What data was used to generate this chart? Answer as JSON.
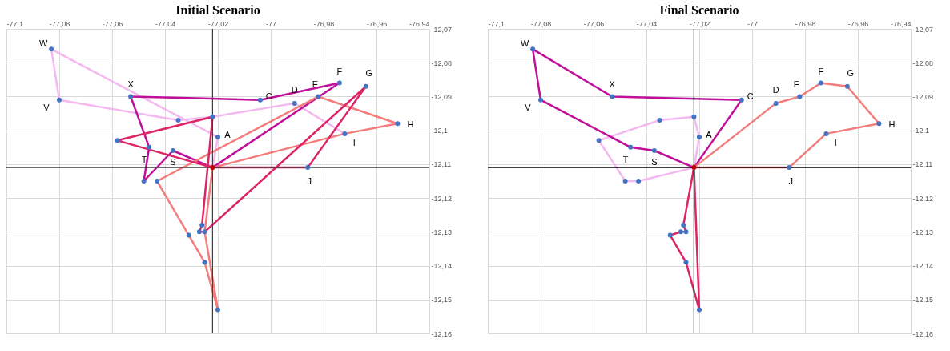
{
  "chart_data": [
    {
      "type": "line",
      "title": "Initial Scenario",
      "xlim": [
        -77.1,
        -76.94
      ],
      "ylim": [
        -12.16,
        -12.07
      ],
      "xticks": [
        {
          "value": -77.1,
          "label": "-77,1"
        },
        {
          "value": -77.08,
          "label": "-77,08"
        },
        {
          "value": -77.06,
          "label": "-77,06"
        },
        {
          "value": -77.04,
          "label": "-77,04"
        },
        {
          "value": -77.02,
          "label": "-77,02"
        },
        {
          "value": -77,
          "label": "-77"
        },
        {
          "value": -76.98,
          "label": "-76,98"
        },
        {
          "value": -76.96,
          "label": "-76,96"
        },
        {
          "value": -76.94,
          "label": "-76,94"
        }
      ],
      "yticks": [
        {
          "value": -12.16,
          "label": "-12,16"
        },
        {
          "value": -12.15,
          "label": "-12,15"
        },
        {
          "value": -12.14,
          "label": "-12,14"
        },
        {
          "value": -12.13,
          "label": "-12,13"
        },
        {
          "value": -12.12,
          "label": "-12,12"
        },
        {
          "value": -12.11,
          "label": "-12,11"
        },
        {
          "value": -12.1,
          "label": "-12,1"
        },
        {
          "value": -12.09,
          "label": "-12,09"
        },
        {
          "value": -12.08,
          "label": "-12,08"
        },
        {
          "value": -12.07,
          "label": "-12,07"
        }
      ],
      "grid": true,
      "marker": "none",
      "line_style": "solid",
      "ref_lines": [
        {
          "axis": "x",
          "value": -77.022,
          "color": "#404040"
        },
        {
          "axis": "y",
          "value": -12.111,
          "color": "#404040"
        }
      ],
      "series": [
        {
          "color": "#f4b8f0",
          "x": [
            -77.022,
            -77.02,
            -77.083,
            -77.08,
            -77.035,
            -77.022,
            -76.991,
            -76.972
          ],
          "values": [
            -12.111,
            -12.102,
            -12.076,
            -12.091,
            -12.097,
            -12.096,
            -12.092,
            -12.101
          ]
        },
        {
          "color": "#c0109a",
          "x": [
            -77.022,
            -77.037,
            -77.048,
            -77.046,
            -77.053
          ],
          "values": [
            -12.111,
            -12.106,
            -12.115,
            -12.105,
            -12.09
          ]
        },
        {
          "color": "#c0109a",
          "x": [
            -77.053,
            -77.004,
            -76.974,
            -77.022
          ],
          "values": [
            -12.09,
            -12.091,
            -12.086,
            -12.111
          ]
        },
        {
          "color": "#f47c7c",
          "x": [
            -77.022,
            -76.972,
            -76.952,
            -76.982,
            -77.043,
            -77.031,
            -77.025,
            -77.02
          ],
          "values": [
            -12.111,
            -12.101,
            -12.098,
            -12.09,
            -12.115,
            -12.131,
            -12.139,
            -12.153
          ]
        },
        {
          "color": "#f47c7c",
          "x": [
            -77.02,
            -77.025,
            -77.022
          ],
          "values": [
            -12.153,
            -12.13,
            -12.111
          ]
        },
        {
          "color": "#dc2466",
          "x": [
            -77.022,
            -77.058,
            -77.022,
            -77.026,
            -77.027
          ],
          "values": [
            -12.111,
            -12.103,
            -12.096,
            -12.128,
            -12.13
          ]
        },
        {
          "color": "#dc2466",
          "x": [
            -77.027,
            -77.025,
            -76.964,
            -76.986,
            -77.022
          ],
          "values": [
            -12.13,
            -12.13,
            -12.087,
            -12.111,
            -12.111
          ]
        },
        {
          "type": "scatter",
          "marker": "circle",
          "color": "#4472c4",
          "x": [
            -77.083,
            -77.08,
            -77.053,
            -77.035,
            -77.022,
            -77.02,
            -77.058,
            -77.046,
            -77.037,
            -77.048,
            -77.043,
            -77.004,
            -76.991,
            -76.982,
            -76.974,
            -76.964,
            -76.952,
            -76.972,
            -76.986,
            -77.026,
            -77.027,
            -77.025,
            -77.031,
            -77.025,
            -77.02
          ],
          "values": [
            -12.076,
            -12.091,
            -12.09,
            -12.097,
            -12.096,
            -12.102,
            -12.103,
            -12.105,
            -12.106,
            -12.115,
            -12.115,
            -12.091,
            -12.092,
            -12.09,
            -12.086,
            -12.087,
            -12.098,
            -12.101,
            -12.111,
            -12.128,
            -12.13,
            -12.13,
            -12.131,
            -12.139,
            -12.153
          ]
        },
        {
          "type": "scatter",
          "marker": "circle",
          "color": "#c00000",
          "x": [
            -77.022
          ],
          "values": [
            -12.111
          ]
        }
      ],
      "annotations": [
        {
          "text": "W",
          "x": -77.083,
          "y": -12.076
        },
        {
          "text": "X",
          "x": -77.053,
          "y": -12.09
        },
        {
          "text": "V",
          "x": -77.08,
          "y": -12.091
        },
        {
          "text": "A",
          "x": -77.02,
          "y": -12.102
        },
        {
          "text": "T",
          "x": -77.046,
          "y": -12.105
        },
        {
          "text": "S",
          "x": -77.037,
          "y": -12.106
        },
        {
          "text": "C",
          "x": -77.004,
          "y": -12.091
        },
        {
          "text": "D",
          "x": -76.991,
          "y": -12.092
        },
        {
          "text": "E",
          "x": -76.982,
          "y": -12.09
        },
        {
          "text": "F",
          "x": -76.974,
          "y": -12.086
        },
        {
          "text": "G",
          "x": -76.964,
          "y": -12.087
        },
        {
          "text": "H",
          "x": -76.952,
          "y": -12.098
        },
        {
          "text": "I",
          "x": -76.972,
          "y": -12.101
        },
        {
          "text": "J",
          "x": -76.986,
          "y": -12.111
        }
      ]
    },
    {
      "type": "line",
      "title": "Final Scenario",
      "xlim": [
        -77.1,
        -76.94
      ],
      "ylim": [
        -12.16,
        -12.07
      ],
      "xticks": [
        {
          "value": -77.1,
          "label": "-77,1"
        },
        {
          "value": -77.08,
          "label": "-77,08"
        },
        {
          "value": -77.06,
          "label": "-77,06"
        },
        {
          "value": -77.04,
          "label": "-77,04"
        },
        {
          "value": -77.02,
          "label": "-77,02"
        },
        {
          "value": -77,
          "label": "-77"
        },
        {
          "value": -76.98,
          "label": "-76,98"
        },
        {
          "value": -76.96,
          "label": "-76,96"
        },
        {
          "value": -76.94,
          "label": "-76,94"
        }
      ],
      "yticks": [
        {
          "value": -12.16,
          "label": "-12,16"
        },
        {
          "value": -12.15,
          "label": "-12,15"
        },
        {
          "value": -12.14,
          "label": "-12,14"
        },
        {
          "value": -12.13,
          "label": "-12,13"
        },
        {
          "value": -12.12,
          "label": "-12,12"
        },
        {
          "value": -12.11,
          "label": "-12,11"
        },
        {
          "value": -12.1,
          "label": "-12,1"
        },
        {
          "value": -12.09,
          "label": "-12,09"
        },
        {
          "value": -12.08,
          "label": "-12,08"
        },
        {
          "value": -12.07,
          "label": "-12,07"
        }
      ],
      "grid": true,
      "marker": "none",
      "line_style": "solid",
      "ref_lines": [
        {
          "axis": "x",
          "value": -77.022,
          "color": "#000000"
        },
        {
          "axis": "y",
          "value": -12.111,
          "color": "#000000"
        }
      ],
      "series": [
        {
          "color": "#f4b8f0",
          "x": [
            -77.022,
            -77.02,
            -77.022,
            -77.035,
            -77.058
          ],
          "values": [
            -12.111,
            -12.102,
            -12.096,
            -12.097,
            -12.103
          ]
        },
        {
          "color": "#f4b8f0",
          "x": [
            -77.058,
            -77.048,
            -77.043,
            -77.022
          ],
          "values": [
            -12.103,
            -12.115,
            -12.115,
            -12.111
          ]
        },
        {
          "color": "#c0109a",
          "x": [
            -77.022,
            -77.037,
            -77.046,
            -77.08,
            -77.083
          ],
          "values": [
            -12.111,
            -12.106,
            -12.105,
            -12.091,
            -12.076
          ]
        },
        {
          "color": "#c0109a",
          "x": [
            -77.083,
            -77.053,
            -77.004,
            -77.022
          ],
          "values": [
            -12.076,
            -12.09,
            -12.091,
            -12.111
          ]
        },
        {
          "color": "#f47c7c",
          "x": [
            -77.022,
            -76.991,
            -76.982,
            -76.974,
            -76.964
          ],
          "values": [
            -12.111,
            -12.092,
            -12.09,
            -12.086,
            -12.087
          ]
        },
        {
          "color": "#f47c7c",
          "x": [
            -76.964,
            -76.952,
            -76.972,
            -76.986,
            -77.022
          ],
          "values": [
            -12.087,
            -12.098,
            -12.101,
            -12.111,
            -12.111
          ]
        },
        {
          "color": "#dc2466",
          "x": [
            -77.022,
            -77.026,
            -77.025,
            -77.027,
            -77.031
          ],
          "values": [
            -12.111,
            -12.128,
            -12.13,
            -12.13,
            -12.131
          ]
        },
        {
          "color": "#dc2466",
          "x": [
            -77.031,
            -77.025,
            -77.02,
            -77.022
          ],
          "values": [
            -12.131,
            -12.139,
            -12.153,
            -12.111
          ]
        },
        {
          "type": "scatter",
          "marker": "circle",
          "color": "#4472c4",
          "x": [
            -77.083,
            -77.08,
            -77.053,
            -77.035,
            -77.022,
            -77.02,
            -77.058,
            -77.046,
            -77.037,
            -77.048,
            -77.043,
            -77.004,
            -76.991,
            -76.982,
            -76.974,
            -76.964,
            -76.952,
            -76.972,
            -76.986,
            -77.026,
            -77.027,
            -77.025,
            -77.031,
            -77.025,
            -77.02
          ],
          "values": [
            -12.076,
            -12.091,
            -12.09,
            -12.097,
            -12.096,
            -12.102,
            -12.103,
            -12.105,
            -12.106,
            -12.115,
            -12.115,
            -12.091,
            -12.092,
            -12.09,
            -12.086,
            -12.087,
            -12.098,
            -12.101,
            -12.111,
            -12.128,
            -12.13,
            -12.13,
            -12.131,
            -12.139,
            -12.153
          ]
        },
        {
          "type": "scatter",
          "marker": "circle",
          "color": "#c00000",
          "x": [
            -77.022
          ],
          "values": [
            -12.111
          ]
        }
      ],
      "annotations": [
        {
          "text": "W",
          "x": -77.083,
          "y": -12.076
        },
        {
          "text": "X",
          "x": -77.053,
          "y": -12.09
        },
        {
          "text": "V",
          "x": -77.08,
          "y": -12.091
        },
        {
          "text": "A",
          "x": -77.02,
          "y": -12.102
        },
        {
          "text": "T",
          "x": -77.046,
          "y": -12.105
        },
        {
          "text": "S",
          "x": -77.037,
          "y": -12.106
        },
        {
          "text": "C",
          "x": -77.004,
          "y": -12.091
        },
        {
          "text": "D",
          "x": -76.991,
          "y": -12.092
        },
        {
          "text": "E",
          "x": -76.982,
          "y": -12.09
        },
        {
          "text": "F",
          "x": -76.974,
          "y": -12.086
        },
        {
          "text": "G",
          "x": -76.964,
          "y": -12.087
        },
        {
          "text": "H",
          "x": -76.952,
          "y": -12.098
        },
        {
          "text": "I",
          "x": -76.972,
          "y": -12.101
        },
        {
          "text": "J",
          "x": -76.986,
          "y": -12.111
        }
      ]
    }
  ]
}
